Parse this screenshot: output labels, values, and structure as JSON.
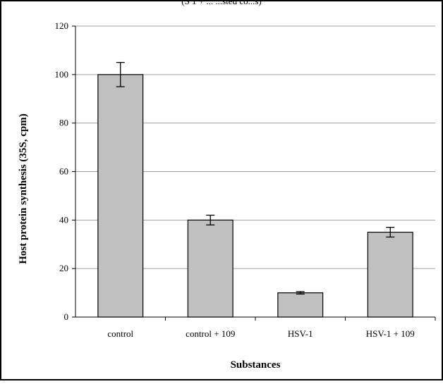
{
  "chart_data": {
    "type": "bar",
    "title_partial": "(S 1  + ...  ...sted  co...s)",
    "xlabel": "Substances",
    "ylabel": "Host protein synthesis (35S, cpm)",
    "categories": [
      "control",
      "control + 109",
      "HSV-1",
      "HSV-1 + 109"
    ],
    "values": [
      100,
      40,
      10,
      35
    ],
    "error": [
      5,
      2,
      0.5,
      2
    ],
    "ylim": [
      0,
      120
    ],
    "yticks": [
      0,
      20,
      40,
      60,
      80,
      100,
      120
    ],
    "grid": true,
    "legend": "none",
    "bar_color": "#c0c0c0",
    "bar_edge_color": "#000000",
    "grid_color": "#a0a0a0"
  }
}
